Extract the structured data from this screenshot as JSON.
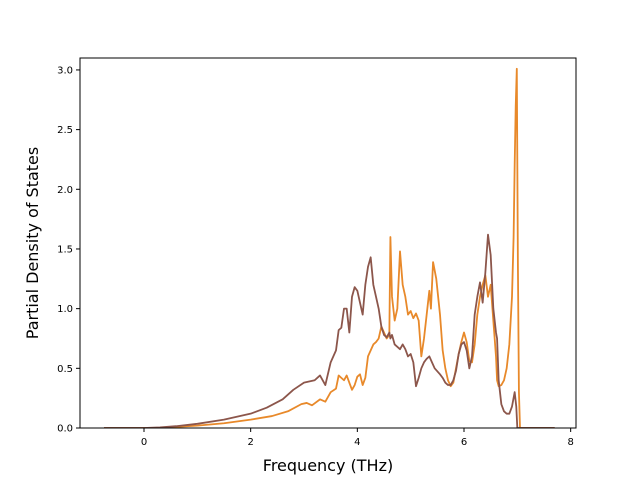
{
  "chart_data": {
    "type": "line",
    "title": "",
    "xlabel": "Frequency (THz)",
    "ylabel": "Partial Density of States",
    "xlim": [
      -1.2,
      8.1
    ],
    "ylim": [
      0.0,
      3.1
    ],
    "xticks": [
      0,
      2,
      4,
      6,
      8
    ],
    "yticks": [
      0.0,
      0.5,
      1.0,
      1.5,
      2.0,
      2.5,
      3.0
    ],
    "xtick_labels": [
      "0",
      "2",
      "4",
      "6",
      "8"
    ],
    "ytick_labels": [
      "0.0",
      "0.5",
      "1.0",
      "1.5",
      "2.0",
      "2.5",
      "3.0"
    ],
    "grid": false,
    "legend": "none",
    "series": [
      {
        "color": "#e8892a",
        "points": [
          [
            -0.75,
            0.0
          ],
          [
            0.0,
            0.0
          ],
          [
            0.3,
            0.002
          ],
          [
            0.6,
            0.01
          ],
          [
            1.0,
            0.02
          ],
          [
            1.5,
            0.04
          ],
          [
            2.0,
            0.07
          ],
          [
            2.4,
            0.1
          ],
          [
            2.7,
            0.14
          ],
          [
            2.95,
            0.2
          ],
          [
            3.05,
            0.21
          ],
          [
            3.15,
            0.19
          ],
          [
            3.3,
            0.24
          ],
          [
            3.4,
            0.22
          ],
          [
            3.5,
            0.3
          ],
          [
            3.6,
            0.33
          ],
          [
            3.65,
            0.44
          ],
          [
            3.7,
            0.42
          ],
          [
            3.75,
            0.4
          ],
          [
            3.8,
            0.44
          ],
          [
            3.85,
            0.38
          ],
          [
            3.9,
            0.32
          ],
          [
            3.95,
            0.36
          ],
          [
            4.0,
            0.43
          ],
          [
            4.05,
            0.45
          ],
          [
            4.1,
            0.36
          ],
          [
            4.15,
            0.42
          ],
          [
            4.2,
            0.6
          ],
          [
            4.3,
            0.7
          ],
          [
            4.35,
            0.72
          ],
          [
            4.4,
            0.75
          ],
          [
            4.45,
            0.85
          ],
          [
            4.5,
            0.8
          ],
          [
            4.55,
            0.75
          ],
          [
            4.6,
            0.78
          ],
          [
            4.62,
            1.6
          ],
          [
            4.65,
            1.1
          ],
          [
            4.7,
            0.9
          ],
          [
            4.75,
            1.0
          ],
          [
            4.8,
            1.48
          ],
          [
            4.85,
            1.2
          ],
          [
            4.9,
            1.1
          ],
          [
            4.95,
            0.95
          ],
          [
            5.0,
            0.98
          ],
          [
            5.05,
            0.92
          ],
          [
            5.1,
            0.96
          ],
          [
            5.15,
            0.9
          ],
          [
            5.2,
            0.6
          ],
          [
            5.25,
            0.75
          ],
          [
            5.3,
            0.95
          ],
          [
            5.35,
            1.15
          ],
          [
            5.38,
            1.0
          ],
          [
            5.42,
            1.39
          ],
          [
            5.48,
            1.25
          ],
          [
            5.55,
            0.95
          ],
          [
            5.6,
            0.65
          ],
          [
            5.65,
            0.5
          ],
          [
            5.7,
            0.4
          ],
          [
            5.75,
            0.35
          ],
          [
            5.8,
            0.38
          ],
          [
            5.85,
            0.5
          ],
          [
            5.9,
            0.62
          ],
          [
            5.95,
            0.72
          ],
          [
            6.0,
            0.8
          ],
          [
            6.05,
            0.72
          ],
          [
            6.1,
            0.56
          ],
          [
            6.15,
            0.55
          ],
          [
            6.2,
            0.7
          ],
          [
            6.25,
            0.95
          ],
          [
            6.3,
            1.1
          ],
          [
            6.35,
            1.2
          ],
          [
            6.4,
            1.28
          ],
          [
            6.45,
            1.1
          ],
          [
            6.5,
            1.2
          ],
          [
            6.55,
            0.9
          ],
          [
            6.6,
            0.6
          ],
          [
            6.62,
            0.4
          ],
          [
            6.65,
            0.35
          ],
          [
            6.7,
            0.36
          ],
          [
            6.75,
            0.4
          ],
          [
            6.8,
            0.5
          ],
          [
            6.85,
            0.7
          ],
          [
            6.9,
            1.1
          ],
          [
            6.93,
            1.6
          ],
          [
            6.95,
            2.2
          ],
          [
            6.97,
            2.7
          ],
          [
            6.99,
            3.01
          ],
          [
            7.01,
            1.4
          ],
          [
            7.03,
            0.3
          ],
          [
            7.05,
            0.0
          ],
          [
            7.7,
            0.0
          ]
        ]
      },
      {
        "color": "#8c564b",
        "points": [
          [
            -0.75,
            0.0
          ],
          [
            0.0,
            0.0
          ],
          [
            0.3,
            0.005
          ],
          [
            0.6,
            0.015
          ],
          [
            1.0,
            0.035
          ],
          [
            1.5,
            0.07
          ],
          [
            2.0,
            0.12
          ],
          [
            2.3,
            0.17
          ],
          [
            2.6,
            0.24
          ],
          [
            2.8,
            0.32
          ],
          [
            3.0,
            0.38
          ],
          [
            3.2,
            0.4
          ],
          [
            3.3,
            0.44
          ],
          [
            3.4,
            0.36
          ],
          [
            3.5,
            0.55
          ],
          [
            3.6,
            0.65
          ],
          [
            3.65,
            0.82
          ],
          [
            3.7,
            0.84
          ],
          [
            3.75,
            1.0
          ],
          [
            3.8,
            1.0
          ],
          [
            3.85,
            0.8
          ],
          [
            3.9,
            1.1
          ],
          [
            3.95,
            1.18
          ],
          [
            4.0,
            1.15
          ],
          [
            4.05,
            1.05
          ],
          [
            4.1,
            0.95
          ],
          [
            4.15,
            1.2
          ],
          [
            4.2,
            1.35
          ],
          [
            4.25,
            1.43
          ],
          [
            4.3,
            1.2
          ],
          [
            4.35,
            1.1
          ],
          [
            4.4,
            1.0
          ],
          [
            4.45,
            0.85
          ],
          [
            4.5,
            0.78
          ],
          [
            4.55,
            0.76
          ],
          [
            4.6,
            0.8
          ],
          [
            4.62,
            0.75
          ],
          [
            4.65,
            0.78
          ],
          [
            4.7,
            0.7
          ],
          [
            4.75,
            0.68
          ],
          [
            4.8,
            0.66
          ],
          [
            4.85,
            0.7
          ],
          [
            4.9,
            0.66
          ],
          [
            4.95,
            0.6
          ],
          [
            5.0,
            0.62
          ],
          [
            5.05,
            0.55
          ],
          [
            5.1,
            0.35
          ],
          [
            5.15,
            0.42
          ],
          [
            5.2,
            0.5
          ],
          [
            5.25,
            0.55
          ],
          [
            5.3,
            0.58
          ],
          [
            5.35,
            0.6
          ],
          [
            5.4,
            0.55
          ],
          [
            5.45,
            0.5
          ],
          [
            5.55,
            0.45
          ],
          [
            5.6,
            0.42
          ],
          [
            5.65,
            0.38
          ],
          [
            5.7,
            0.36
          ],
          [
            5.75,
            0.36
          ],
          [
            5.8,
            0.4
          ],
          [
            5.85,
            0.48
          ],
          [
            5.9,
            0.62
          ],
          [
            5.95,
            0.7
          ],
          [
            6.0,
            0.72
          ],
          [
            6.05,
            0.65
          ],
          [
            6.1,
            0.5
          ],
          [
            6.15,
            0.6
          ],
          [
            6.2,
            0.95
          ],
          [
            6.25,
            1.1
          ],
          [
            6.3,
            1.22
          ],
          [
            6.35,
            1.05
          ],
          [
            6.4,
            1.3
          ],
          [
            6.45,
            1.62
          ],
          [
            6.5,
            1.45
          ],
          [
            6.55,
            1.0
          ],
          [
            6.6,
            0.8
          ],
          [
            6.62,
            0.75
          ],
          [
            6.65,
            0.4
          ],
          [
            6.7,
            0.2
          ],
          [
            6.75,
            0.14
          ],
          [
            6.8,
            0.12
          ],
          [
            6.85,
            0.12
          ],
          [
            6.9,
            0.18
          ],
          [
            6.95,
            0.3
          ],
          [
            6.98,
            0.18
          ],
          [
            7.0,
            0.0
          ],
          [
            7.7,
            0.0
          ]
        ]
      }
    ]
  }
}
